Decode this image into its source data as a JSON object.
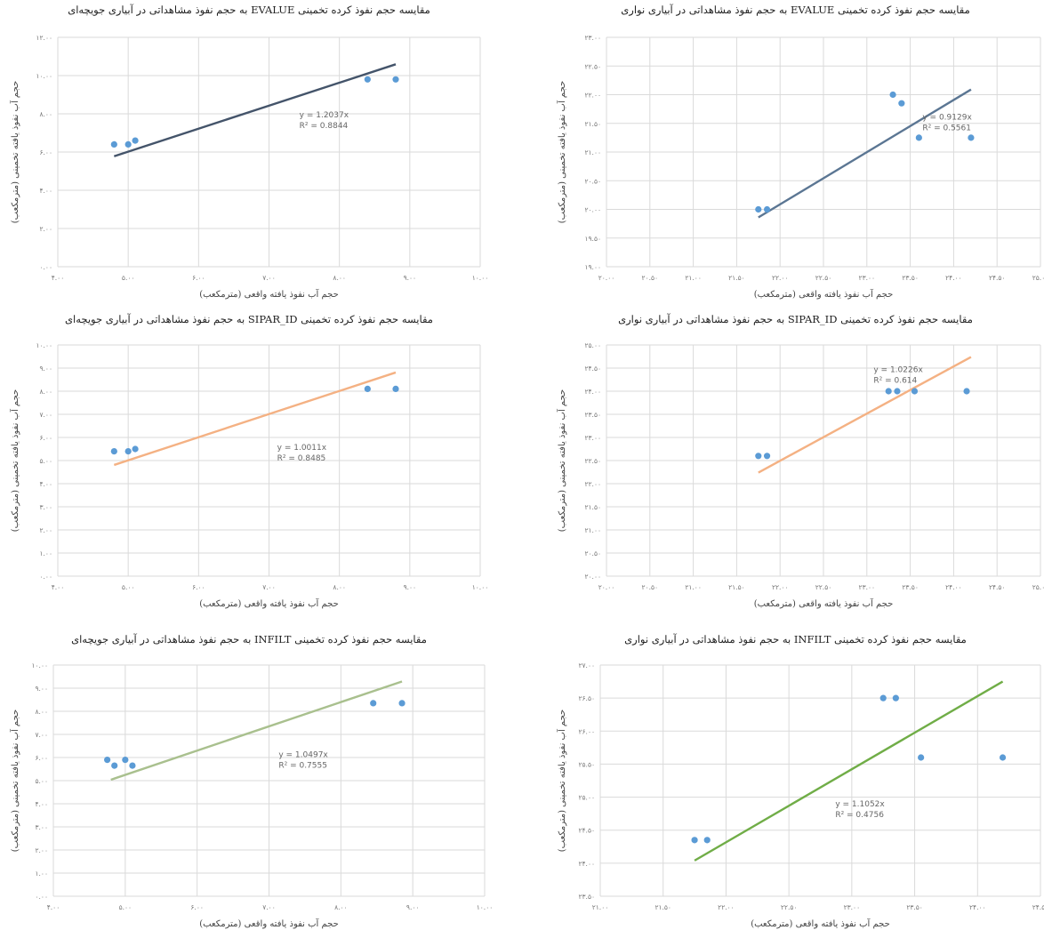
{
  "chart_data": [
    {
      "type": "scatter",
      "title": "مقایسه حجم نفوذ کرده تخمینی EVALUE به حجم نفوذ مشاهداتی در آبیاری جویچه‌ای",
      "xlabel": "حجم آب نفوذ یافته واقعی (مترمکعب)",
      "ylabel": "حجم آب نفوذ یافته تخمینی (مترمکعب)",
      "xlim": [
        4,
        10
      ],
      "ylim": [
        0,
        12
      ],
      "xticks": [
        "۴.۰۰",
        "۵.۰۰",
        "۶.۰۰",
        "۷.۰۰",
        "۸.۰۰",
        "۹.۰۰",
        "۱۰.۰۰"
      ],
      "yticks": [
        "۰.۰۰",
        "۲.۰۰",
        "۴.۰۰",
        "۶.۰۰",
        "۸.۰۰",
        "۱۰.۰۰",
        "۱۲.۰۰"
      ],
      "points": [
        [
          4.8,
          6.4
        ],
        [
          5.0,
          6.4
        ],
        [
          5.1,
          6.6
        ],
        [
          8.4,
          9.8
        ],
        [
          8.8,
          9.8
        ]
      ],
      "trendline": {
        "x": [
          4.8,
          8.8
        ],
        "y": [
          5.78,
          10.59
        ],
        "color": "#44546A"
      },
      "equation": "y = 1.2037x",
      "r2": "R² = 0.8844"
    },
    {
      "type": "scatter",
      "title": "مقایسه حجم نفوذ کرده تخمینی EVALUE به حجم نفوذ مشاهداتی در آبیاری نواری",
      "xlabel": "حجم آب نفوذ یافته واقعی (مترمکعب)",
      "ylabel": "حجم آب نفوذ یافته تخمینی (مترمکعب)",
      "xlim": [
        20,
        25
      ],
      "ylim": [
        19,
        23
      ],
      "xticks": [
        "۲۰.۰۰",
        "۲۰.۵۰",
        "۲۱.۰۰",
        "۲۱.۵۰",
        "۲۲.۰۰",
        "۲۲.۵۰",
        "۲۳.۰۰",
        "۲۳.۵۰",
        "۲۴.۰۰",
        "۲۴.۵۰",
        "۲۵.۰۰"
      ],
      "yticks": [
        "۱۹.۰۰",
        "۱۹.۵۰",
        "۲۰.۰۰",
        "۲۰.۵۰",
        "۲۱.۰۰",
        "۲۱.۵۰",
        "۲۲.۰۰",
        "۲۲.۵۰",
        "۲۳.۰۰"
      ],
      "points": [
        [
          21.75,
          20.0
        ],
        [
          21.85,
          20.0
        ],
        [
          23.3,
          22.0
        ],
        [
          23.4,
          21.85
        ],
        [
          23.6,
          21.25
        ],
        [
          24.2,
          21.25
        ]
      ],
      "trendline": {
        "x": [
          21.75,
          24.2
        ],
        "y": [
          19.86,
          22.09
        ],
        "color": "#5B7693"
      },
      "equation": "y = 0.9129x",
      "r2": "R² = 0.5561"
    },
    {
      "type": "scatter",
      "title": "مقایسه حجم نفوذ کرده تخمینی SIPAR_ID به حجم نفوذ مشاهداتی در آبیاری جویچه‌ای",
      "xlabel": "حجم آب نفوذ یافته واقعی (مترمکعب)",
      "ylabel": "حجم آب نفوذ یافته تخمینی (مترمکعب)",
      "xlim": [
        4,
        10
      ],
      "ylim": [
        0,
        10
      ],
      "xticks": [
        "۴.۰۰",
        "۵.۰۰",
        "۶.۰۰",
        "۷.۰۰",
        "۸.۰۰",
        "۹.۰۰",
        "۱۰.۰۰"
      ],
      "yticks": [
        "۰.۰۰",
        "۱.۰۰",
        "۲.۰۰",
        "۳.۰۰",
        "۴.۰۰",
        "۵.۰۰",
        "۶.۰۰",
        "۷.۰۰",
        "۸.۰۰",
        "۹.۰۰",
        "۱۰.۰۰"
      ],
      "points": [
        [
          4.8,
          5.4
        ],
        [
          5.0,
          5.4
        ],
        [
          5.1,
          5.5
        ],
        [
          8.4,
          8.1
        ],
        [
          8.8,
          8.1
        ]
      ],
      "trendline": {
        "x": [
          4.8,
          8.8
        ],
        "y": [
          4.81,
          8.81
        ],
        "color": "#F4B183"
      },
      "equation": "y = 1.0011x",
      "r2": "R² = 0.8485"
    },
    {
      "type": "scatter",
      "title": "مقایسه حجم نفوذ کرده تخمینی SIPAR_ID به حجم نفوذ مشاهداتی در آبیاری نواری",
      "xlabel": "حجم آب نفوذ یافته واقعی (مترمکعب)",
      "ylabel": "حجم آب نفوذ یافته تخمینی (مترمکعب)",
      "xlim": [
        20,
        25
      ],
      "ylim": [
        20,
        25
      ],
      "xticks": [
        "۲۰.۰۰",
        "۲۰.۵۰",
        "۲۱.۰۰",
        "۲۱.۵۰",
        "۲۲.۰۰",
        "۲۲.۵۰",
        "۲۳.۰۰",
        "۲۳.۵۰",
        "۲۴.۰۰",
        "۲۴.۵۰",
        "۲۵.۰۰"
      ],
      "yticks": [
        "۲۰.۰۰",
        "۲۰.۵۰",
        "۲۱.۰۰",
        "۲۱.۵۰",
        "۲۲.۰۰",
        "۲۲.۵۰",
        "۲۳.۰۰",
        "۲۳.۵۰",
        "۲۴.۰۰",
        "۲۴.۵۰",
        "۲۵.۰۰"
      ],
      "points": [
        [
          21.75,
          22.6
        ],
        [
          21.85,
          22.6
        ],
        [
          23.25,
          24.0
        ],
        [
          23.35,
          24.0
        ],
        [
          23.55,
          24.0
        ],
        [
          24.15,
          24.0
        ]
      ],
      "trendline": {
        "x": [
          21.75,
          24.2
        ],
        "y": [
          22.24,
          24.74
        ],
        "color": "#F4B183"
      },
      "equation": "y = 1.0226x",
      "r2": "R² = 0.614"
    },
    {
      "type": "scatter",
      "title": "مقایسه حجم نفوذ کرده تخمینی INFILT به حجم نفوذ مشاهداتی در آبیاری جویچه‌ای",
      "xlabel": "حجم آب نفوذ یافته واقعی (مترمکعب)",
      "ylabel": "حجم آب نفوذ یافته تخمینی (مترمکعب)",
      "xlim": [
        4,
        10
      ],
      "ylim": [
        0,
        10
      ],
      "xticks": [
        "۴.۰۰",
        "۵.۰۰",
        "۶.۰۰",
        "۷.۰۰",
        "۸.۰۰",
        "۹.۰۰",
        "۱۰.۰۰"
      ],
      "yticks": [
        "۰.۰۰",
        "۱.۰۰",
        "۲.۰۰",
        "۳.۰۰",
        "۴.۰۰",
        "۵.۰۰",
        "۶.۰۰",
        "۷.۰۰",
        "۸.۰۰",
        "۹.۰۰",
        "۱۰.۰۰"
      ],
      "points": [
        [
          4.75,
          5.9
        ],
        [
          4.85,
          5.65
        ],
        [
          5.0,
          5.9
        ],
        [
          5.1,
          5.65
        ],
        [
          8.45,
          8.35
        ],
        [
          8.85,
          8.35
        ]
      ],
      "trendline": {
        "x": [
          4.8,
          8.85
        ],
        "y": [
          5.04,
          9.29
        ],
        "color": "#A9C08E"
      },
      "equation": "y = 1.0497x",
      "r2": "R² = 0.7555"
    },
    {
      "type": "scatter",
      "title": "مقایسه حجم نفوذ کرده تخمینی INFILT به حجم نفوذ مشاهداتی در آبیاری نواری",
      "xlabel": "حجم آب نفوذ یافته واقعی (مترمکعب)",
      "ylabel": "حجم آب نفوذ یافته تخمینی (مترمکعب)",
      "xlim": [
        21,
        24.5
      ],
      "ylim": [
        23.5,
        27
      ],
      "xticks": [
        "۲۱.۰۰",
        "۲۱.۵۰",
        "۲۲.۰۰",
        "۲۲.۵۰",
        "۲۳.۰۰",
        "۲۳.۵۰",
        "۲۴.۰۰",
        "۲۴.۵۰"
      ],
      "yticks": [
        "۲۳.۵۰",
        "۲۴.۰۰",
        "۲۴.۵۰",
        "۲۵.۰۰",
        "۲۵.۵۰",
        "۲۶.۰۰",
        "۲۶.۵۰",
        "۲۷.۰۰"
      ],
      "points": [
        [
          21.75,
          24.35
        ],
        [
          21.85,
          24.35
        ],
        [
          23.25,
          26.5
        ],
        [
          23.35,
          26.5
        ],
        [
          23.55,
          25.6
        ],
        [
          24.2,
          25.6
        ]
      ],
      "trendline": {
        "x": [
          21.75,
          24.2
        ],
        "y": [
          24.04,
          26.75
        ],
        "color": "#70AD47"
      },
      "equation": "y = 1.1052x",
      "r2": "R² = 0.4756"
    }
  ]
}
